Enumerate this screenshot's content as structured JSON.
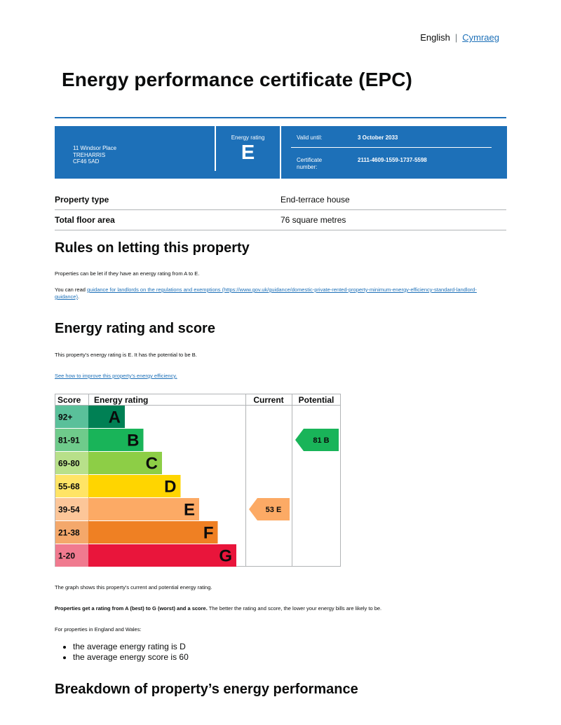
{
  "language": {
    "english": "English",
    "separator": "|",
    "welsh": "Cymraeg"
  },
  "title": "Energy performance certificate (EPC)",
  "banner": {
    "address_line1": "11 Windsor Place",
    "address_line2": "TREHARRIS",
    "address_line3": "CF46 5AD",
    "energy_rating_label": "Energy rating",
    "energy_rating": "E",
    "valid_until_label": "Valid until:",
    "valid_until": "3 October 2033",
    "certificate_label": "Certificate number:",
    "certificate_number": "2111-4609-1559-1737-5598"
  },
  "property": [
    {
      "label": "Property type",
      "value": "End-terrace house"
    },
    {
      "label": "Total floor area",
      "value": "76 square metres"
    }
  ],
  "letting": {
    "heading": "Rules on letting this property",
    "para1": "Properties can be let if they have an energy rating from A to E.",
    "para2_prefix": "You can read ",
    "para2_link": "guidance for landlords on the regulations and exemptions (https://www.gov.uk/guidance/domestic-private-rented-property-minimum-energy-efficiency-standard-landlord-guidance)",
    "para2_suffix": "."
  },
  "rating": {
    "heading": "Energy rating and score",
    "para1": "This property's energy rating is E. It has the potential to be B.",
    "improve_link": "See how to improve this property's energy efficiency.",
    "graph_caption": "The graph shows this property's current and potential energy rating.",
    "bold_text": "Properties get a rating from A (best) to G (worst) and a score.",
    "rest_text": " The better the rating and score, the lower your energy bills are likely to be.",
    "england_wales": "For properties in England and Wales:",
    "averages": [
      "the average energy rating is D",
      "the average energy score is 60"
    ]
  },
  "chart_data": {
    "type": "table",
    "headers": {
      "score": "Score",
      "rating": "Energy rating",
      "current": "Current",
      "potential": "Potential"
    },
    "bands": [
      {
        "score": "92+",
        "letter": "A",
        "color": "#008054",
        "score_bg": "#5ac09a"
      },
      {
        "score": "81-91",
        "letter": "B",
        "color": "#19b459",
        "score_bg": "#6fcb8b"
      },
      {
        "score": "69-80",
        "letter": "C",
        "color": "#8dce46",
        "score_bg": "#b8e08a"
      },
      {
        "score": "55-68",
        "letter": "D",
        "color": "#ffd500",
        "score_bg": "#ffe466"
      },
      {
        "score": "39-54",
        "letter": "E",
        "color": "#fcaa65",
        "score_bg": "#fcc699"
      },
      {
        "score": "21-38",
        "letter": "F",
        "color": "#ef8023",
        "score_bg": "#f4a86b"
      },
      {
        "score": "1-20",
        "letter": "G",
        "color": "#e9153b",
        "score_bg": "#f07a8f"
      }
    ],
    "current": {
      "score": 53,
      "letter": "E",
      "label": "53  E"
    },
    "potential": {
      "score": 81,
      "letter": "B",
      "label": "81  B"
    }
  },
  "breakdown": {
    "heading": "Breakdown of property’s energy performance"
  }
}
